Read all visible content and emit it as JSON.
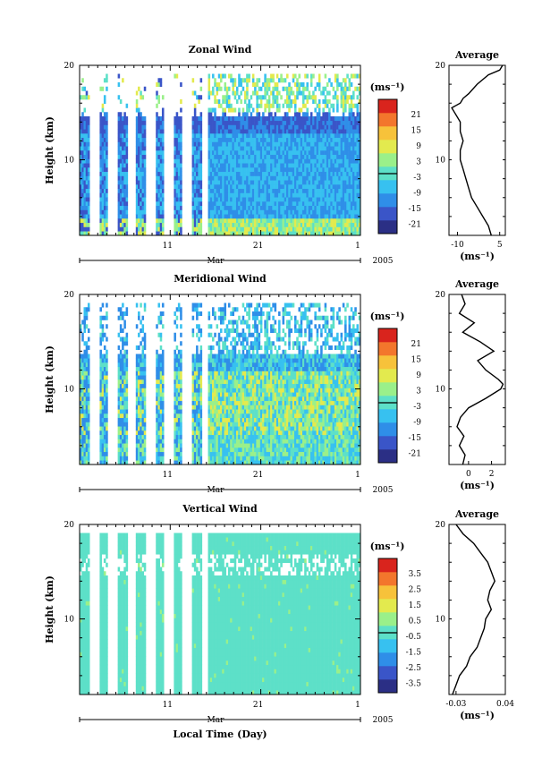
{
  "chart_data": [
    {
      "type": "heatmap",
      "title": "Zonal Wind",
      "ylabel": "Height (km)",
      "xlabel": "",
      "ylim": [
        2,
        20
      ],
      "yticks": [
        "20",
        "10"
      ],
      "xticks": [
        "11",
        "21",
        "1"
      ],
      "month_label": "Mar",
      "year_label": "2005",
      "colorbar": {
        "unit": "(ms⁻¹)",
        "labels": [
          "21",
          "15",
          "9",
          "3",
          "-3",
          "-9",
          "-15",
          "-21"
        ],
        "range": [
          -24,
          24
        ]
      },
      "average": {
        "title": "Average",
        "xlabel": "(ms⁻¹)",
        "xticks": [
          "-10",
          "5"
        ],
        "xlim": [
          -13,
          7
        ],
        "heights": [
          2,
          3,
          4,
          5,
          6,
          7,
          8,
          9,
          10,
          11,
          12,
          13,
          14,
          15,
          15.5,
          16,
          16.5,
          17,
          18,
          19,
          19.5,
          20
        ],
        "values": [
          2,
          1,
          -1,
          -3,
          -5,
          -6,
          -7,
          -8,
          -9,
          -9,
          -8,
          -9,
          -9,
          -11,
          -12,
          -9,
          -8,
          -6,
          -3,
          1,
          5,
          6
        ]
      }
    },
    {
      "type": "heatmap",
      "title": "Meridional Wind",
      "ylabel": "Height (km)",
      "xlabel": "",
      "ylim": [
        2,
        20
      ],
      "yticks": [
        "20",
        "10"
      ],
      "xticks": [
        "11",
        "21",
        "1"
      ],
      "month_label": "Mar",
      "year_label": "2005",
      "colorbar": {
        "unit": "(ms⁻¹)",
        "labels": [
          "21",
          "15",
          "9",
          "3",
          "-3",
          "-9",
          "-15",
          "-21"
        ],
        "range": [
          -24,
          24
        ]
      },
      "average": {
        "title": "Average",
        "xlabel": "(ms⁻¹)",
        "xticks": [
          "0",
          "2"
        ],
        "xlim": [
          -1.7,
          3.2
        ],
        "heights": [
          2,
          3,
          4,
          5,
          6,
          7,
          8,
          9,
          10,
          10.5,
          11,
          12,
          13,
          14,
          15,
          16,
          17,
          18,
          19,
          20
        ],
        "values": [
          -0.5,
          -0.3,
          -0.8,
          -0.4,
          -1.0,
          -0.7,
          0,
          1.5,
          2.8,
          3.0,
          2.6,
          1.5,
          0.8,
          2.2,
          1.0,
          -0.5,
          0.5,
          -0.8,
          -0.3,
          -0.6
        ]
      }
    },
    {
      "type": "heatmap",
      "title": "Vertical Wind",
      "ylabel": "Height (km)",
      "xlabel": "Local Time (Day)",
      "ylim": [
        2,
        20
      ],
      "yticks": [
        "20",
        "10"
      ],
      "xticks": [
        "11",
        "21",
        "1"
      ],
      "month_label": "Mar",
      "year_label": "2005",
      "colorbar": {
        "unit": "(ms⁻¹)",
        "labels": [
          "3.5",
          "2.5",
          "1.5",
          "0.5",
          "-0.5",
          "-1.5",
          "-2.5",
          "-3.5"
        ],
        "range": [
          -4,
          4
        ]
      },
      "average": {
        "title": "Average",
        "xlabel": "(ms⁻¹)",
        "xticks": [
          "-0.03",
          "0.04"
        ],
        "xlim": [
          -0.04,
          0.04
        ],
        "heights": [
          2,
          3,
          4,
          5,
          6,
          7,
          8,
          9,
          10,
          11,
          12,
          13,
          14,
          15,
          16,
          17,
          18,
          19,
          20
        ],
        "values": [
          -0.035,
          -0.03,
          -0.025,
          -0.015,
          -0.01,
          0.0,
          0.005,
          0.01,
          0.012,
          0.02,
          0.015,
          0.018,
          0.025,
          0.02,
          0.015,
          0.005,
          -0.005,
          -0.02,
          -0.03
        ]
      }
    }
  ],
  "colormap": [
    "#2b2f85",
    "#3a55c8",
    "#2f8ee8",
    "#37c1f0",
    "#5de0c8",
    "#9af08a",
    "#e3ea4e",
    "#f7c23a",
    "#f3762c",
    "#d9241d"
  ]
}
